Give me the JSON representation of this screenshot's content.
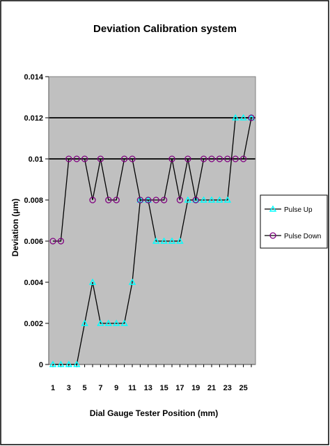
{
  "chart_data": {
    "type": "line",
    "title": "Deviation Calibration system",
    "xlabel": "Dial Gauge Tester Position (mm)",
    "ylabel": "Deviation  (μm)",
    "x": [
      1,
      2,
      3,
      4,
      5,
      6,
      7,
      8,
      9,
      10,
      11,
      12,
      13,
      14,
      15,
      16,
      17,
      18,
      19,
      20,
      21,
      22,
      23,
      24,
      25,
      26
    ],
    "x_tick_labels": [
      "1",
      "3",
      "5",
      "7",
      "9",
      "11",
      "13",
      "15",
      "17",
      "19",
      "21",
      "23",
      "25"
    ],
    "y_tick_labels": [
      "0",
      "0.002",
      "0.004",
      "0.006",
      "0.008",
      "0.01",
      "0.012",
      "0.014"
    ],
    "ylim": [
      0,
      0.014
    ],
    "grid": "horizontal major lines at 0.01 and 0.012",
    "legend_position": "right",
    "plot_background": "#c0c0c0",
    "series": [
      {
        "name": "Pulse Up",
        "marker": "triangle",
        "marker_color": "#00ffff",
        "line_color": "#000000",
        "values": [
          0,
          0,
          0,
          0,
          0.002,
          0.004,
          0.002,
          0.002,
          0.002,
          0.002,
          0.004,
          0.008,
          0.008,
          0.006,
          0.006,
          0.006,
          0.006,
          0.008,
          0.008,
          0.008,
          0.008,
          0.008,
          0.008,
          0.012,
          0.012,
          0.012
        ]
      },
      {
        "name": "Pulse Down",
        "marker": "circle",
        "marker_color": "#800080",
        "line_color": "#000000",
        "values": [
          0.006,
          0.006,
          0.01,
          0.01,
          0.01,
          0.008,
          0.01,
          0.008,
          0.008,
          0.01,
          0.01,
          0.008,
          0.008,
          0.008,
          0.008,
          0.01,
          0.008,
          0.01,
          0.008,
          0.01,
          0.01,
          0.01,
          0.01,
          0.01,
          0.01,
          0.012
        ]
      }
    ]
  }
}
